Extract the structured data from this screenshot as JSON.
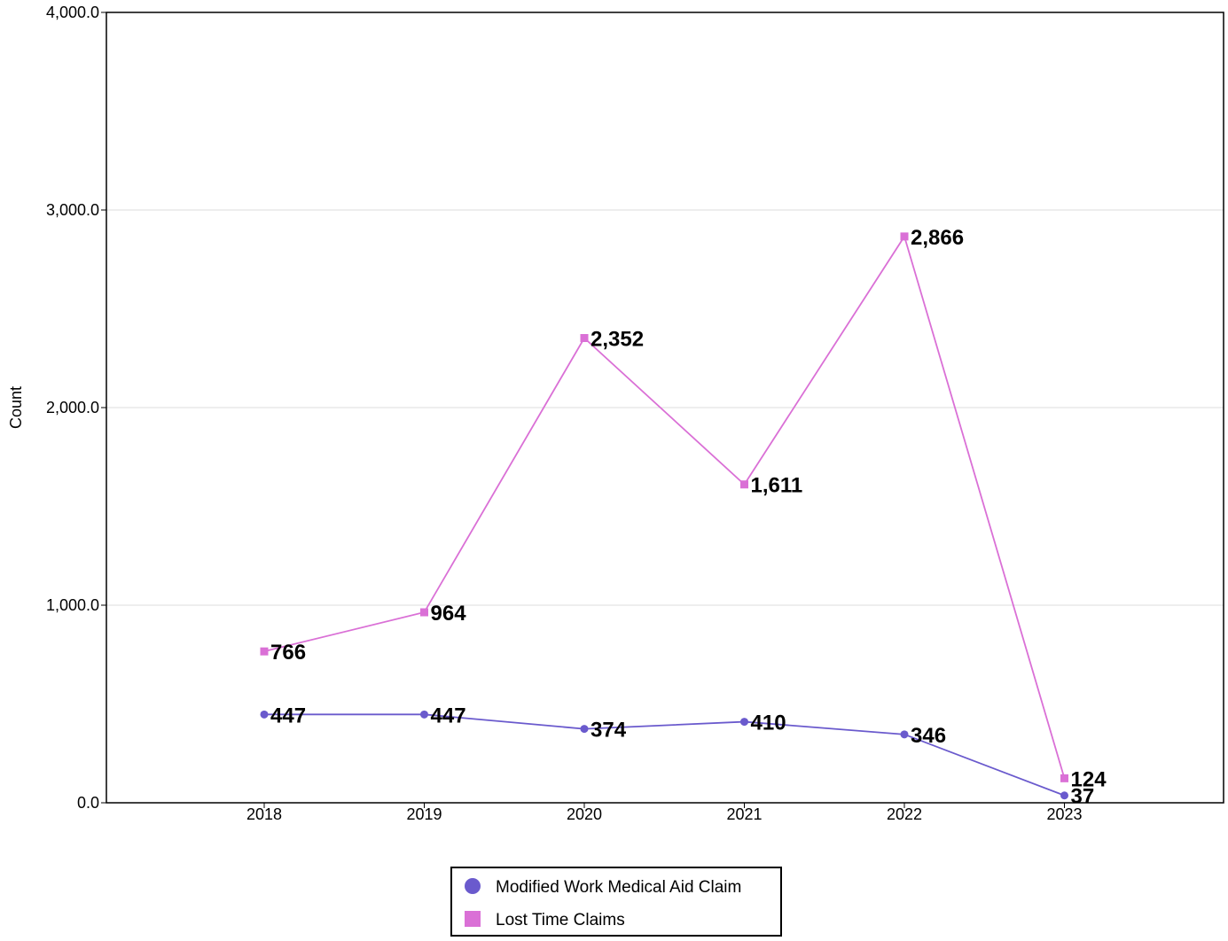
{
  "chart_data": {
    "type": "line",
    "title": "",
    "xlabel": "",
    "ylabel": "Count",
    "categories": [
      "2018",
      "2019",
      "2020",
      "2021",
      "2022",
      "2023"
    ],
    "ylim": [
      0,
      4000
    ],
    "yticks": [
      0,
      1000,
      2000,
      3000,
      4000
    ],
    "ytick_labels": [
      "0.0",
      "1,000.0",
      "2,000.0",
      "3,000.0",
      "4,000.0"
    ],
    "grid": true,
    "legend_position": "bottom-center",
    "series": [
      {
        "name": "Modified Work Medical Aid Claim",
        "values": [
          447,
          447,
          374,
          410,
          346,
          37
        ],
        "labels": [
          "447",
          "447",
          "374",
          "410",
          "346",
          "37"
        ],
        "color": "#6a5acd",
        "marker": "circle"
      },
      {
        "name": "Lost Time Claims",
        "values": [
          766,
          964,
          2352,
          1611,
          2866,
          124
        ],
        "labels": [
          "766",
          "964",
          "2,352",
          "1,611",
          "2,866",
          "124"
        ],
        "color": "#da70d6",
        "marker": "square"
      }
    ]
  }
}
